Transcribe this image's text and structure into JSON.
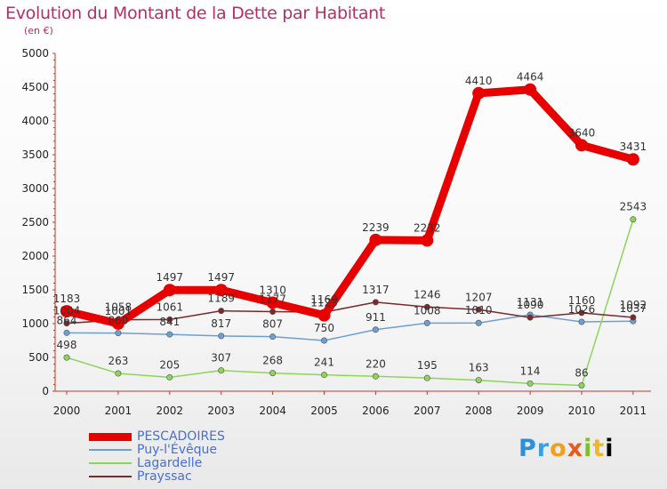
{
  "header": {
    "title": "Evolution du Montant de la Dette par Habitant",
    "unit": "(en €)"
  },
  "chart_data": {
    "type": "line",
    "title": "Evolution du Montant de la Dette par Habitant",
    "subtitle": "(en €)",
    "categories": [
      "2000",
      "2001",
      "2002",
      "2003",
      "2004",
      "2005",
      "2006",
      "2007",
      "2008",
      "2009",
      "2010",
      "2011"
    ],
    "ylim": [
      0,
      5000
    ],
    "yticks": [
      0,
      500,
      1000,
      1500,
      2000,
      2500,
      3000,
      3500,
      4000,
      4500,
      5000
    ],
    "grid": false,
    "legend_position": "bottom-left",
    "series": [
      {
        "name": "PESCADOIRES",
        "color": "#e60000",
        "values": [
          1183,
          1001,
          1497,
          1497,
          1310,
          1123,
          2239,
          2232,
          4410,
          4464,
          3640,
          3431
        ],
        "labels": [
          "1183",
          "1001",
          "1497",
          "1497",
          "1310",
          "1123",
          "2239",
          "2232",
          "4410",
          "4464",
          "3640",
          "3431"
        ]
      },
      {
        "name": "Puy-l'Évêque",
        "color": "#6f9fd0",
        "values": [
          864,
          860,
          841,
          817,
          807,
          750,
          911,
          1008,
          1010,
          1131,
          1026,
          1037
        ],
        "labels": [
          "864",
          "860",
          "841",
          "817",
          "807",
          "750",
          "911",
          "1008",
          "1010",
          "1131",
          "1026",
          "1037"
        ]
      },
      {
        "name": "Lagardelle",
        "color": "#8fd45a",
        "values": [
          498,
          263,
          205,
          307,
          268,
          241,
          220,
          195,
          163,
          114,
          86,
          2543
        ],
        "labels": [
          "498",
          "263",
          "205",
          "307",
          "268",
          "241",
          "220",
          "195",
          "163",
          "114",
          "86",
          "2543"
        ]
      },
      {
        "name": "Prayssac",
        "color": "#7a2a2a",
        "values": [
          1004,
          1058,
          1061,
          1189,
          1177,
          1169,
          1317,
          1246,
          1207,
          1090,
          1160,
          1092
        ],
        "labels": [
          "1004",
          "1058",
          "1061",
          "1189",
          "1177",
          "1169",
          "1317",
          "1246",
          "1207",
          "1090",
          "1160",
          "1092"
        ]
      }
    ]
  },
  "logo": [
    "P",
    "r",
    "o",
    "x",
    "i",
    "t",
    "i"
  ]
}
